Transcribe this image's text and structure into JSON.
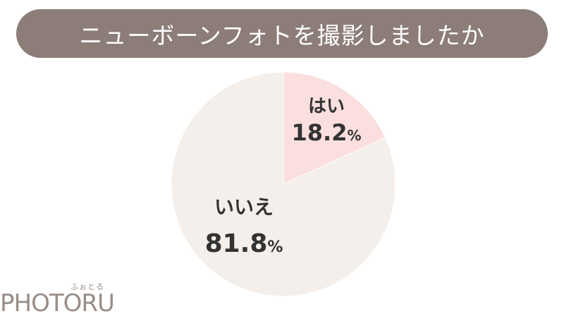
{
  "header": {
    "title": "ニューボーンフォトを撮影しましたか"
  },
  "colors": {
    "header_bg": "#8c7d79",
    "slice_yes": "#fbdfdf",
    "slice_no": "#f4efeb",
    "label_text": "#333333",
    "logo": "#9a8e89"
  },
  "chart_data": {
    "type": "pie",
    "title": "ニューボーンフォトを撮影しましたか",
    "start": "12 o'clock, clockwise",
    "slices": [
      {
        "label": "はい",
        "value": 18.2,
        "value_text": "18.2",
        "unit": "%",
        "color": "#fbdfdf"
      },
      {
        "label": "いいえ",
        "value": 81.8,
        "value_text": "81.8",
        "unit": "%",
        "color": "#f4efeb"
      }
    ]
  },
  "logo": {
    "text": "PHOTORU",
    "subtext": "ふぉとる"
  }
}
